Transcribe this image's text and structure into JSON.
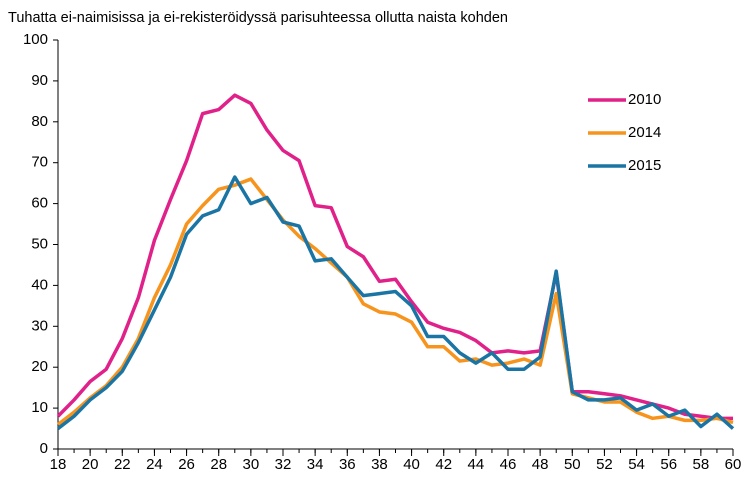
{
  "chart_data": {
    "type": "line",
    "title": "Tuhatta ei-naimisissa ja ei-rekisteröidyssä parisuhteessa ollutta naista kohden",
    "x": [
      18,
      19,
      20,
      21,
      22,
      23,
      24,
      25,
      26,
      27,
      28,
      29,
      30,
      31,
      32,
      33,
      34,
      35,
      36,
      37,
      38,
      39,
      40,
      41,
      42,
      43,
      44,
      45,
      46,
      47,
      48,
      49,
      50,
      51,
      52,
      53,
      54,
      55,
      56,
      57,
      58,
      59,
      60
    ],
    "series": [
      {
        "name": "2010",
        "color": "#e0218a",
        "values": [
          8,
          12,
          16.5,
          19.5,
          27,
          37,
          51,
          61,
          70.5,
          82,
          83,
          86.5,
          84.5,
          78,
          73,
          70.5,
          59.5,
          59,
          49.5,
          47,
          41,
          41.5,
          36,
          31,
          29.5,
          28.5,
          26.5,
          23.5,
          24,
          23.5,
          24,
          43,
          14,
          14,
          13.5,
          13,
          12,
          11,
          10,
          8.5,
          8,
          7.5,
          7.5
        ]
      },
      {
        "name": "2014",
        "color": "#f7941d",
        "values": [
          6,
          9,
          12.5,
          15.5,
          20,
          27,
          37,
          45,
          55,
          59.5,
          63.5,
          64.5,
          66,
          61,
          56,
          52,
          49,
          45.5,
          42,
          35.5,
          33.5,
          33,
          31,
          25,
          25,
          21.5,
          22,
          20.5,
          21,
          22,
          20.5,
          38,
          13.5,
          12.5,
          11.5,
          11.5,
          9,
          7.5,
          8,
          7,
          7,
          7.5,
          6.5
        ]
      },
      {
        "name": "2015",
        "color": "#1b75a4",
        "values": [
          5,
          8,
          12,
          15,
          19,
          26,
          34,
          42,
          52.5,
          57,
          58.5,
          66.5,
          60,
          61.5,
          55.5,
          54.5,
          46,
          46.5,
          42,
          37.5,
          38,
          38.5,
          35,
          27.5,
          27.5,
          23.5,
          21,
          23.5,
          19.5,
          19.5,
          22.5,
          43.5,
          14,
          12,
          12,
          12.5,
          9.5,
          11,
          8,
          9.5,
          5.5,
          8.5,
          5
        ]
      }
    ],
    "xlim": [
      18,
      60
    ],
    "xticks": [
      18,
      20,
      22,
      24,
      26,
      28,
      30,
      32,
      34,
      36,
      38,
      40,
      42,
      44,
      46,
      48,
      50,
      52,
      54,
      56,
      58,
      60
    ],
    "ylim": [
      0,
      100
    ],
    "yticks": [
      0,
      10,
      20,
      30,
      40,
      50,
      60,
      70,
      80,
      90,
      100
    ],
    "grid": false,
    "legend": "upper right"
  }
}
